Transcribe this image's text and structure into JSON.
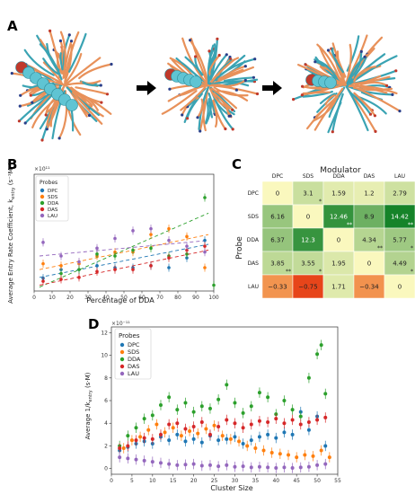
{
  "panels": {
    "a": {
      "letter": "A"
    },
    "b": {
      "letter": "B"
    },
    "c": {
      "letter": "C"
    },
    "d": {
      "letter": "D"
    }
  },
  "panel_a": {
    "images": [
      {
        "name": "snapshot-1"
      },
      {
        "name": "snapshot-2"
      },
      {
        "name": "snapshot-3"
      }
    ],
    "colors": {
      "tail": "#e8915a",
      "head": "#3aa3b3",
      "bead": "#5fc4d3",
      "bead_red": "#c0392b",
      "dark": "#2a3f8a"
    }
  },
  "chart_data": [
    {
      "id": "B",
      "type": "scatter",
      "title": "",
      "xlabel": "Percentage of DDA",
      "ylabel": "Average Entry Rate Coefficient, k",
      "ylabel_sub": "entry",
      "ylabel_unit": "(s⁻¹M⁻¹)",
      "y_exponent": "×10¹¹",
      "xlim": [
        0,
        100
      ],
      "ylim": [
        0,
        3.0
      ],
      "xticks": [
        "0",
        "10",
        "20",
        "30",
        "40",
        "50",
        "60",
        "70",
        "80",
        "90",
        "100"
      ],
      "legend": {
        "title": "Probes",
        "position": "top-left"
      },
      "series": [
        {
          "name": "DPC",
          "color": "#1f77b4",
          "points": [
            [
              5,
              0.33
            ],
            [
              15,
              0.55
            ],
            [
              25,
              0.55
            ],
            [
              35,
              0.65
            ],
            [
              45,
              0.6
            ],
            [
              55,
              0.6
            ],
            [
              65,
              0.65
            ],
            [
              75,
              0.6
            ],
            [
              85,
              0.85
            ],
            [
              95,
              1.3
            ]
          ]
        },
        {
          "name": "SDS",
          "color": "#ff7f0e",
          "points": [
            [
              5,
              0.7
            ],
            [
              15,
              0.65
            ],
            [
              25,
              0.7
            ],
            [
              35,
              0.9
            ],
            [
              45,
              1.0
            ],
            [
              55,
              1.0
            ],
            [
              65,
              1.45
            ],
            [
              75,
              1.6
            ],
            [
              85,
              1.4
            ],
            [
              95,
              0.6
            ]
          ]
        },
        {
          "name": "DDA",
          "color": "#2ca02c",
          "points": [
            [
              15,
              0.45
            ],
            [
              25,
              0.55
            ],
            [
              35,
              0.95
            ],
            [
              45,
              0.9
            ],
            [
              55,
              1.05
            ],
            [
              65,
              1.1
            ],
            [
              75,
              0.9
            ],
            [
              85,
              0.95
            ],
            [
              95,
              2.4
            ],
            [
              100,
              0.15
            ]
          ]
        },
        {
          "name": "DAS",
          "color": "#d62728",
          "points": [
            [
              5,
              0.25
            ],
            [
              15,
              0.3
            ],
            [
              25,
              0.35
            ],
            [
              35,
              0.5
            ],
            [
              45,
              0.55
            ],
            [
              55,
              0.55
            ],
            [
              65,
              0.65
            ],
            [
              75,
              0.85
            ],
            [
              85,
              1.05
            ],
            [
              95,
              1.15
            ]
          ]
        },
        {
          "name": "LAU",
          "color": "#9467bd",
          "points": [
            [
              5,
              1.25
            ],
            [
              15,
              0.9
            ],
            [
              25,
              0.75
            ],
            [
              35,
              1.1
            ],
            [
              45,
              1.35
            ],
            [
              55,
              1.55
            ],
            [
              65,
              1.6
            ],
            [
              75,
              1.3
            ],
            [
              85,
              1.15
            ],
            [
              95,
              1.0
            ]
          ]
        }
      ],
      "trendlines": [
        {
          "color": "#ff7f0e",
          "y0": 0.55,
          "y1": 1.45
        },
        {
          "color": "#2ca02c",
          "y0": 0.1,
          "y1": 2.0
        },
        {
          "color": "#1f77b4",
          "y0": 0.35,
          "y1": 1.2
        },
        {
          "color": "#d62728",
          "y0": 0.15,
          "y1": 1.05
        },
        {
          "color": "#9467bd",
          "y0": 0.9,
          "y1": 1.3
        }
      ]
    },
    {
      "id": "C",
      "type": "heatmap",
      "title": "Modulator",
      "xlabel": "",
      "ylabel": "Probe",
      "columns": [
        "DPC",
        "SDS",
        "DDA",
        "DAS",
        "LAU"
      ],
      "rows": [
        "DPC",
        "SDS",
        "DDA",
        "DAS",
        "LAU"
      ],
      "values": [
        [
          "0",
          "3.1",
          "1.59",
          "1.2",
          "2.79"
        ],
        [
          "6.16",
          "0",
          "12.46",
          "8.9",
          "14.42"
        ],
        [
          "6.37",
          "12.3",
          "0",
          "4.34",
          "5.77"
        ],
        [
          "3.85",
          "3.55",
          "1.95",
          "0",
          "4.49"
        ],
        [
          "−0.33",
          "−0.75",
          "1.71",
          "−0.34",
          "0"
        ]
      ],
      "numeric": [
        [
          0,
          3.1,
          1.59,
          1.2,
          2.79
        ],
        [
          6.16,
          0,
          12.46,
          8.9,
          14.42
        ],
        [
          6.37,
          12.3,
          0,
          4.34,
          5.77
        ],
        [
          3.85,
          3.55,
          1.95,
          0,
          4.49
        ],
        [
          -0.33,
          -0.75,
          1.71,
          -0.34,
          0
        ]
      ],
      "stars": [
        [
          "",
          "*",
          "",
          "",
          ""
        ],
        [
          "",
          "",
          "**",
          "",
          "**"
        ],
        [
          "",
          "",
          "",
          "**",
          "*"
        ],
        [
          "**",
          "*",
          "",
          "",
          "*"
        ],
        [
          "",
          "",
          "",
          "",
          ""
        ]
      ]
    },
    {
      "id": "D",
      "type": "scatter",
      "title": "",
      "xlabel": "Cluster Size",
      "ylabel": "Average 1/k",
      "ylabel_sub": "entry",
      "ylabel_unit": "(s·M)",
      "y_exponent": "×10⁻¹¹",
      "xlim": [
        0,
        55
      ],
      "ylim": [
        -0.5,
        12.5
      ],
      "xticks": [
        "0",
        "5",
        "10",
        "15",
        "20",
        "25",
        "30",
        "35",
        "40",
        "45",
        "50",
        "55"
      ],
      "yticks": [
        "0",
        "2",
        "4",
        "6",
        "8",
        "10",
        "12"
      ],
      "legend": {
        "title": "Probes",
        "position": "top-left"
      },
      "series": [
        {
          "name": "DPC",
          "color": "#1f77b4",
          "points": [
            [
              2,
              1.6
            ],
            [
              4,
              1.9
            ],
            [
              6,
              2.2
            ],
            [
              8,
              2.4
            ],
            [
              10,
              2.2
            ],
            [
              12,
              2.8
            ],
            [
              14,
              2.5
            ],
            [
              16,
              3.0
            ],
            [
              18,
              2.4
            ],
            [
              20,
              2.6
            ],
            [
              22,
              2.3
            ],
            [
              24,
              2.9
            ],
            [
              26,
              2.5
            ],
            [
              28,
              2.6
            ],
            [
              30,
              2.8
            ],
            [
              32,
              2.2
            ],
            [
              34,
              2.5
            ],
            [
              36,
              2.8
            ],
            [
              38,
              3.0
            ],
            [
              40,
              2.7
            ],
            [
              42,
              3.2
            ],
            [
              44,
              3.0
            ],
            [
              46,
              5.0
            ],
            [
              48,
              3.4
            ],
            [
              50,
              4.6
            ],
            [
              52,
              2.0
            ]
          ]
        },
        {
          "name": "SDS",
          "color": "#ff7f0e",
          "points": [
            [
              3,
              1.8
            ],
            [
              5,
              2.5
            ],
            [
              7,
              2.8
            ],
            [
              9,
              3.4
            ],
            [
              11,
              3.9
            ],
            [
              13,
              3.2
            ],
            [
              15,
              3.6
            ],
            [
              17,
              2.9
            ],
            [
              19,
              3.3
            ],
            [
              21,
              3.1
            ],
            [
              23,
              3.5
            ],
            [
              25,
              3.8
            ],
            [
              27,
              2.9
            ],
            [
              29,
              2.6
            ],
            [
              31,
              2.4
            ],
            [
              33,
              2.0
            ],
            [
              35,
              1.8
            ],
            [
              37,
              1.6
            ],
            [
              39,
              1.4
            ],
            [
              41,
              1.3
            ],
            [
              43,
              1.2
            ],
            [
              45,
              1.0
            ],
            [
              47,
              1.2
            ],
            [
              49,
              1.1
            ],
            [
              51,
              1.6
            ],
            [
              53,
              1.0
            ]
          ]
        },
        {
          "name": "DDA",
          "color": "#2ca02c",
          "points": [
            [
              2,
              2.0
            ],
            [
              4,
              2.9
            ],
            [
              6,
              3.6
            ],
            [
              8,
              4.4
            ],
            [
              10,
              4.7
            ],
            [
              12,
              5.6
            ],
            [
              14,
              6.3
            ],
            [
              16,
              5.2
            ],
            [
              18,
              5.8
            ],
            [
              20,
              5.0
            ],
            [
              22,
              5.5
            ],
            [
              24,
              5.3
            ],
            [
              26,
              6.1
            ],
            [
              28,
              7.4
            ],
            [
              30,
              5.8
            ],
            [
              32,
              4.9
            ],
            [
              34,
              5.5
            ],
            [
              36,
              6.7
            ],
            [
              38,
              6.3
            ],
            [
              40,
              4.8
            ],
            [
              42,
              6.0
            ],
            [
              44,
              5.2
            ],
            [
              46,
              4.6
            ],
            [
              48,
              8.0
            ],
            [
              50,
              10.1
            ],
            [
              51,
              10.9
            ],
            [
              52,
              6.6
            ]
          ]
        },
        {
          "name": "DAS",
          "color": "#d62728",
          "points": [
            [
              2,
              1.8
            ],
            [
              4,
              2.0
            ],
            [
              6,
              2.5
            ],
            [
              8,
              2.7
            ],
            [
              10,
              2.6
            ],
            [
              12,
              3.0
            ],
            [
              14,
              3.9
            ],
            [
              16,
              4.0
            ],
            [
              18,
              3.5
            ],
            [
              20,
              3.7
            ],
            [
              22,
              4.1
            ],
            [
              24,
              3.0
            ],
            [
              26,
              3.7
            ],
            [
              28,
              4.3
            ],
            [
              30,
              4.0
            ],
            [
              32,
              3.6
            ],
            [
              34,
              3.9
            ],
            [
              36,
              4.2
            ],
            [
              38,
              4.1
            ],
            [
              40,
              4.4
            ],
            [
              42,
              4.0
            ],
            [
              44,
              4.3
            ],
            [
              46,
              3.9
            ],
            [
              48,
              4.1
            ],
            [
              50,
              4.3
            ],
            [
              52,
              4.5
            ]
          ]
        },
        {
          "name": "LAU",
          "color": "#9467bd",
          "points": [
            [
              2,
              1.0
            ],
            [
              4,
              0.9
            ],
            [
              6,
              0.8
            ],
            [
              8,
              0.7
            ],
            [
              10,
              0.6
            ],
            [
              12,
              0.5
            ],
            [
              14,
              0.4
            ],
            [
              16,
              0.3
            ],
            [
              18,
              0.35
            ],
            [
              20,
              0.4
            ],
            [
              22,
              0.25
            ],
            [
              24,
              0.3
            ],
            [
              26,
              0.2
            ],
            [
              28,
              0.3
            ],
            [
              30,
              0.15
            ],
            [
              32,
              0.2
            ],
            [
              34,
              0.1
            ],
            [
              36,
              0.15
            ],
            [
              38,
              0.1
            ],
            [
              40,
              0.05
            ],
            [
              42,
              0.1
            ],
            [
              44,
              0.05
            ],
            [
              46,
              0.1
            ],
            [
              48,
              0.15
            ],
            [
              50,
              0.3
            ],
            [
              52,
              0.4
            ]
          ]
        }
      ]
    }
  ]
}
